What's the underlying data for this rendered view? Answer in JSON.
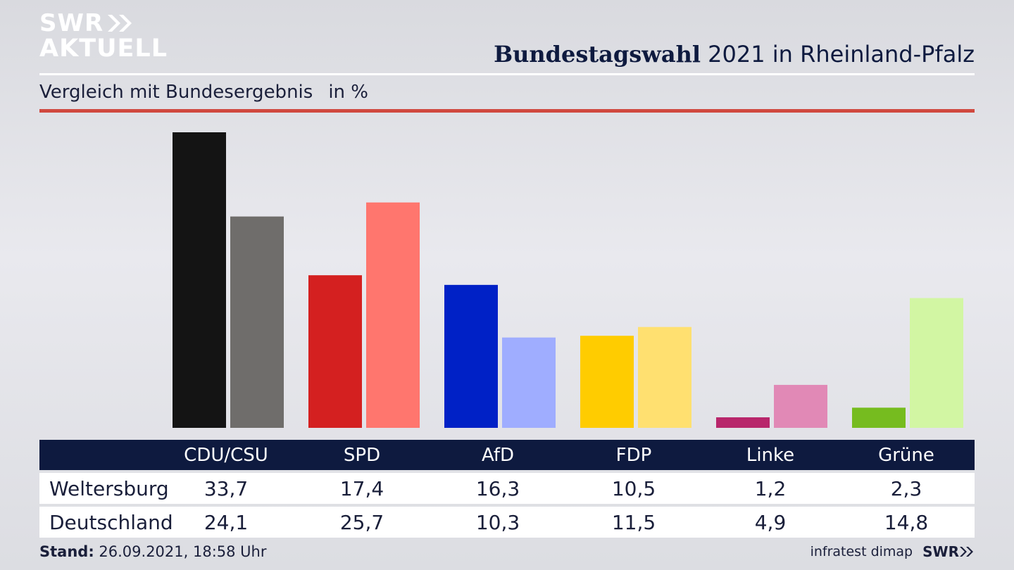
{
  "header": {
    "logo_line1": "SWR",
    "logo_line2": "AKTUELL",
    "title_bold": "Bundestagswahl",
    "title_rest": " 2021 in Rheinland-Pfalz",
    "subtitle": "Vergleich mit Bundesergebnis",
    "unit": "in %"
  },
  "chart_data": {
    "type": "bar",
    "categories": [
      "CDU/CSU",
      "SPD",
      "AfD",
      "FDP",
      "Linke",
      "Grüne"
    ],
    "series": [
      {
        "name": "Weltersburg",
        "values": [
          33.7,
          17.4,
          16.3,
          10.5,
          1.2,
          2.3
        ],
        "colors": [
          "#141414",
          "#d42020",
          "#0021c6",
          "#ffcc00",
          "#b8266b",
          "#76bc1f"
        ]
      },
      {
        "name": "Deutschland",
        "values": [
          24.1,
          25.7,
          10.3,
          11.5,
          4.9,
          14.8
        ],
        "colors": [
          "#6f6d6b",
          "#ff766e",
          "#9fadff",
          "#ffe070",
          "#e189b6",
          "#d2f6a3"
        ]
      }
    ],
    "ylim": [
      0,
      33.7
    ],
    "grid": false
  },
  "table": {
    "rows": [
      {
        "label": "Weltersburg",
        "values": [
          "33,7",
          "17,4",
          "16,3",
          "10,5",
          "1,2",
          "2,3"
        ]
      },
      {
        "label": "Deutschland",
        "values": [
          "24,1",
          "25,7",
          "10,3",
          "11,5",
          "4,9",
          "14,8"
        ]
      }
    ]
  },
  "footer": {
    "stand_label": "Stand:",
    "stand_value": " 26.09.2021, 18:58 Uhr",
    "source": "infratest dimap",
    "brand": "SWR"
  }
}
